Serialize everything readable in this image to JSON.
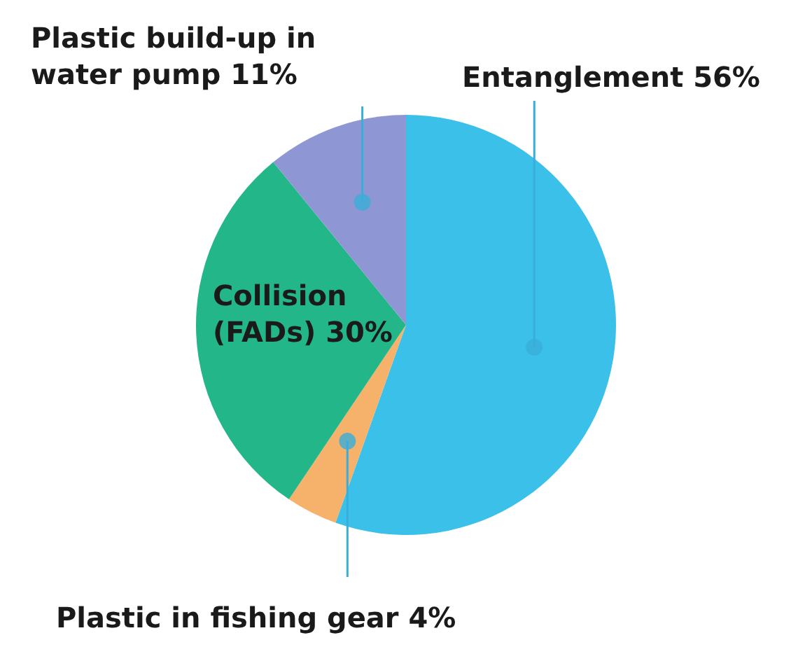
{
  "chart_data": {
    "type": "pie",
    "categories": [
      "Entanglement",
      "Plastic in fishing gear",
      "Collision (FADs)",
      "Plastic build-up in water pump"
    ],
    "values": [
      56,
      4,
      30,
      11
    ],
    "value_labels": [
      "56%",
      "4%",
      "30%",
      "11%"
    ],
    "colors": [
      "#3bc0ea",
      "#f6b26b",
      "#22b688",
      "#8e97d3"
    ]
  }
}
